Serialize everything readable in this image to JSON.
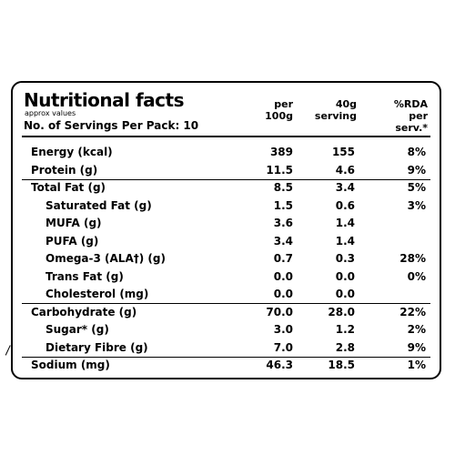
{
  "label": {
    "title": "Nutritional facts",
    "subtitle": "approx values",
    "servings": "No. of Servings Per Pack: 10",
    "columns": {
      "per100g_line1": "per",
      "per100g_line2": "100g",
      "serving_line1": "40g",
      "serving_line2": "serving",
      "rda_line1": "%RDA",
      "rda_line2": "per serv.*"
    },
    "rows": [
      {
        "name": "Energy (kcal)",
        "per100g": "389",
        "serving": "155",
        "rda": "8%",
        "indent": false
      },
      {
        "name": "Protein (g)",
        "per100g": "11.5",
        "serving": "4.6",
        "rda": "9%",
        "indent": false
      },
      {
        "name": "Total Fat (g)",
        "per100g": "8.5",
        "serving": "3.4",
        "rda": "5%",
        "indent": false
      },
      {
        "name": "Saturated Fat (g)",
        "per100g": "1.5",
        "serving": "0.6",
        "rda": "3%",
        "indent": true
      },
      {
        "name": "MUFA (g)",
        "per100g": "3.6",
        "serving": "1.4",
        "rda": "",
        "indent": true
      },
      {
        "name": "PUFA (g)",
        "per100g": "3.4",
        "serving": "1.4",
        "rda": "",
        "indent": true
      },
      {
        "name": "Omega-3 (ALA†) (g)",
        "per100g": "0.7",
        "serving": "0.3",
        "rda": "28%",
        "indent": true
      },
      {
        "name": "Trans Fat (g)",
        "per100g": "0.0",
        "serving": "0.0",
        "rda": "0%",
        "indent": true
      },
      {
        "name": "Cholesterol (mg)",
        "per100g": "0.0",
        "serving": "0.0",
        "rda": "",
        "indent": true
      },
      {
        "name": "Carbohydrate (g)",
        "per100g": "70.0",
        "serving": "28.0",
        "rda": "22%",
        "indent": false
      },
      {
        "name": "Sugar* (g)",
        "per100g": "3.0",
        "serving": "1.2",
        "rda": "2%",
        "indent": true
      },
      {
        "name": "Dietary Fibre (g)",
        "per100g": "7.0",
        "serving": "2.8",
        "rda": "9%",
        "indent": true
      },
      {
        "name": "Sodium (mg)",
        "per100g": "46.3",
        "serving": "18.5",
        "rda": "1%",
        "indent": false
      }
    ]
  }
}
